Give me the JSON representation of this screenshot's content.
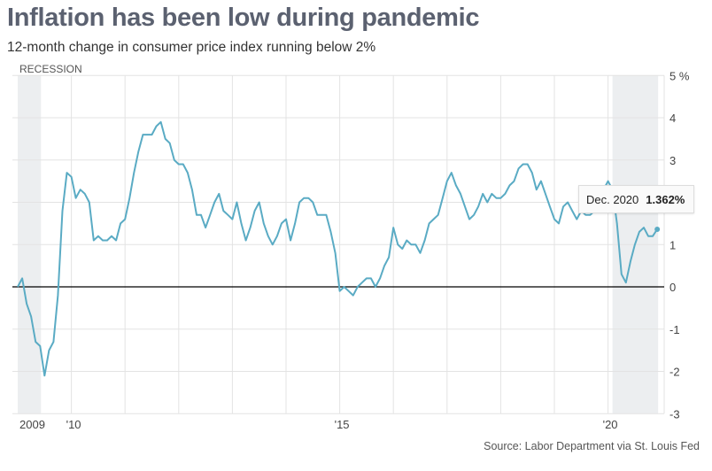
{
  "title": "Inflation has been low during pandemic",
  "subtitle": "12-month change in consumer price index running below 2%",
  "source": "Source: Labor Department via St. Louis Fed",
  "recession_label": "RECESSION",
  "tooltip": {
    "date": "Dec. 2020",
    "value": "1.362%"
  },
  "chart_data": {
    "type": "line",
    "title": "Inflation has been low during pandemic",
    "xlabel": "",
    "ylabel": "",
    "ylim": [
      -3,
      5
    ],
    "xlim": [
      "2009-01",
      "2020-12"
    ],
    "grid": true,
    "line_color": "#5aabc4",
    "recession_color": "#eceef0",
    "recessions": [
      [
        "2009-01",
        "2009-06"
      ],
      [
        "2020-02",
        "2020-12"
      ]
    ],
    "x_ticks": [
      {
        "label": "2009",
        "date": "2009-01"
      },
      {
        "label": "'10",
        "date": "2010-01"
      },
      {
        "label": "'15",
        "date": "2015-01"
      },
      {
        "label": "'20",
        "date": "2020-01"
      }
    ],
    "y_ticks": [
      {
        "value": 5,
        "label": "5 %"
      },
      {
        "value": 4,
        "label": "4"
      },
      {
        "value": 3,
        "label": "3"
      },
      {
        "value": 2,
        "label": ""
      },
      {
        "value": 1,
        "label": "1"
      },
      {
        "value": 0,
        "label": "0"
      },
      {
        "value": -1,
        "label": "-1"
      },
      {
        "value": -2,
        "label": "-2"
      },
      {
        "value": -3,
        "label": "-3"
      }
    ],
    "start": "2009-01",
    "frequency": "monthly",
    "values": [
      0.0,
      0.2,
      -0.4,
      -0.7,
      -1.3,
      -1.4,
      -2.1,
      -1.5,
      -1.3,
      -0.2,
      1.8,
      2.7,
      2.6,
      2.1,
      2.3,
      2.2,
      2.0,
      1.1,
      1.2,
      1.1,
      1.1,
      1.2,
      1.1,
      1.5,
      1.6,
      2.1,
      2.7,
      3.2,
      3.6,
      3.6,
      3.6,
      3.8,
      3.9,
      3.5,
      3.4,
      3.0,
      2.9,
      2.9,
      2.7,
      2.3,
      1.7,
      1.7,
      1.4,
      1.7,
      2.0,
      2.2,
      1.8,
      1.7,
      1.6,
      2.0,
      1.5,
      1.1,
      1.4,
      1.8,
      2.0,
      1.5,
      1.2,
      1.0,
      1.2,
      1.5,
      1.6,
      1.1,
      1.5,
      2.0,
      2.1,
      2.1,
      2.0,
      1.7,
      1.7,
      1.7,
      1.3,
      0.8,
      -0.1,
      0.0,
      -0.1,
      -0.2,
      0.0,
      0.1,
      0.2,
      0.2,
      0.0,
      0.2,
      0.5,
      0.7,
      1.4,
      1.0,
      0.9,
      1.1,
      1.0,
      1.0,
      0.8,
      1.1,
      1.5,
      1.6,
      1.7,
      2.1,
      2.5,
      2.7,
      2.4,
      2.2,
      1.9,
      1.6,
      1.7,
      1.9,
      2.2,
      2.0,
      2.2,
      2.1,
      2.1,
      2.2,
      2.4,
      2.5,
      2.8,
      2.9,
      2.9,
      2.7,
      2.3,
      2.5,
      2.2,
      1.9,
      1.6,
      1.5,
      1.9,
      2.0,
      1.8,
      1.6,
      1.8,
      1.7,
      1.7,
      1.8,
      2.1,
      2.3,
      2.5,
      2.3,
      1.5,
      0.3,
      0.1,
      0.6,
      1.0,
      1.3,
      1.4,
      1.2,
      1.2,
      1.362
    ]
  }
}
